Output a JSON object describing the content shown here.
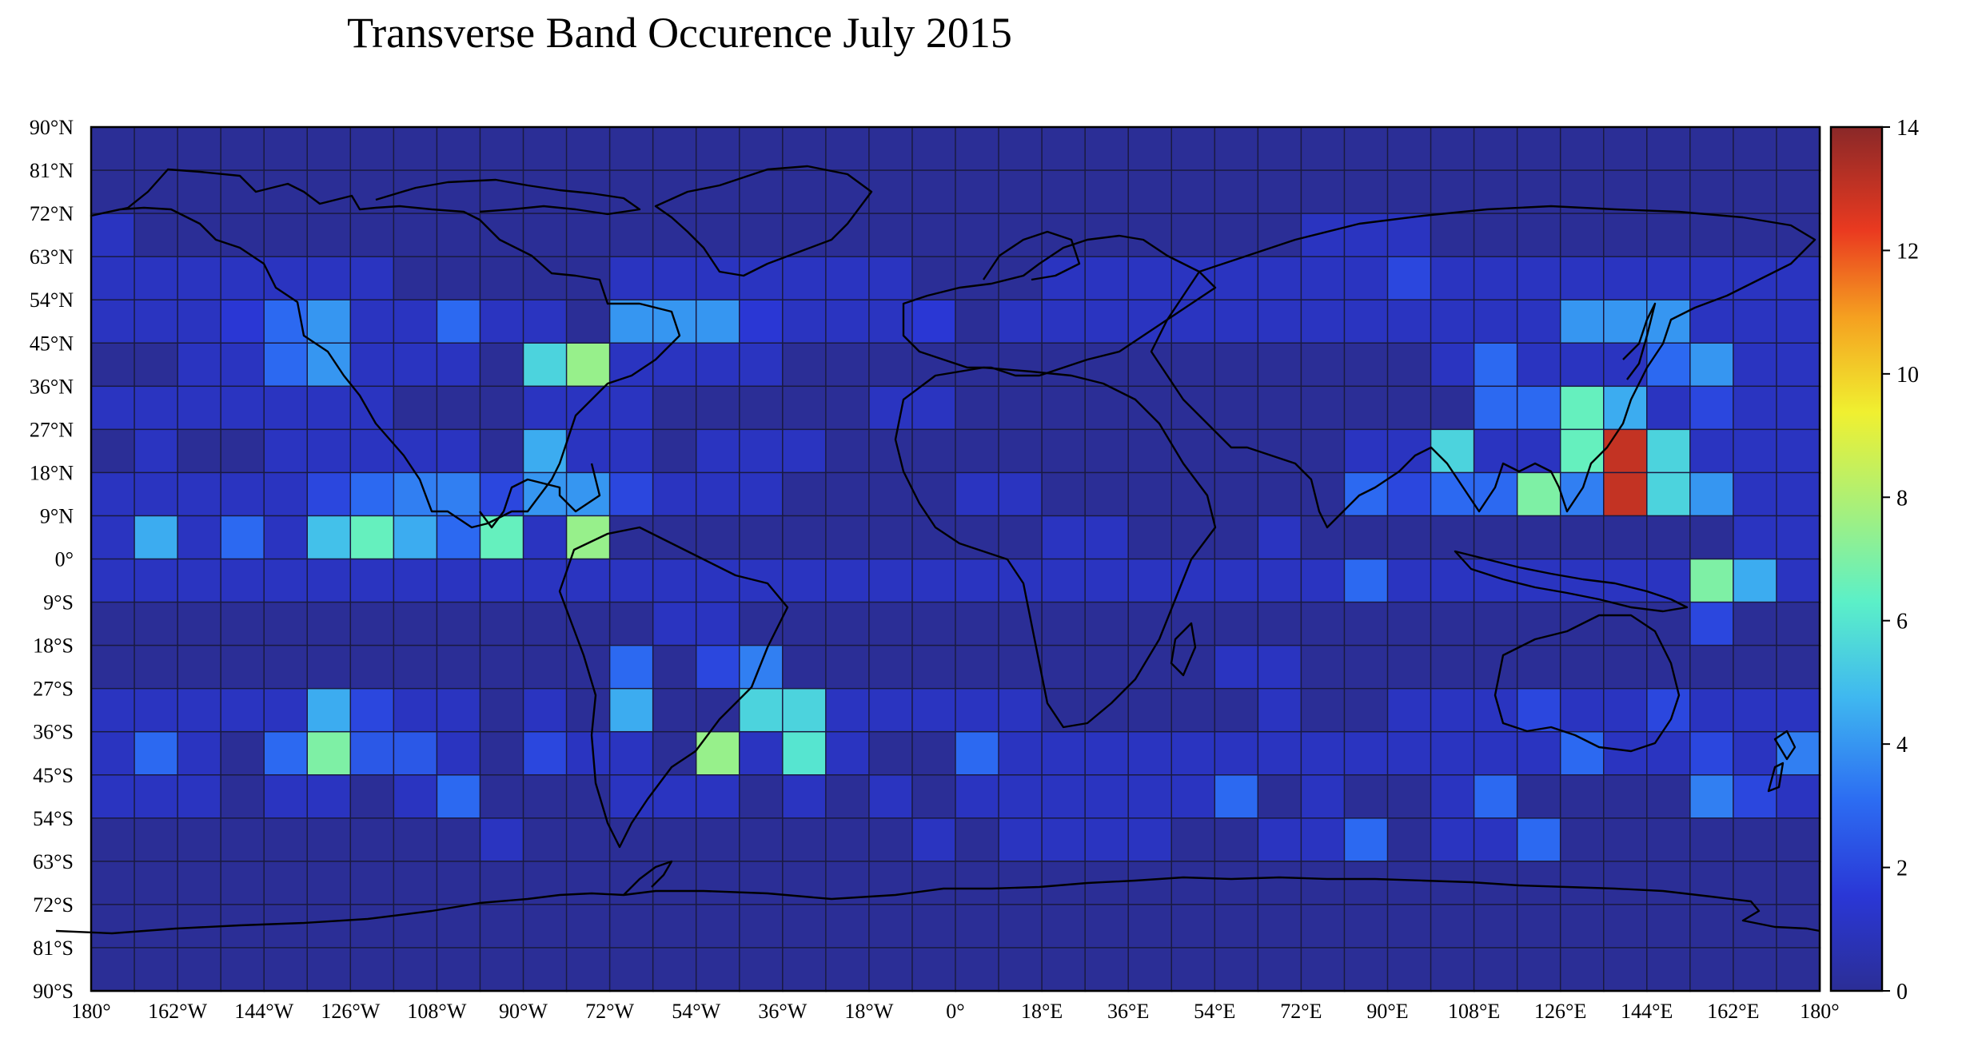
{
  "chart_data": {
    "type": "heatmap",
    "title": "Transverse Band Occurence July 2015",
    "x_tick_labels": [
      "180°",
      "162°W",
      "144°W",
      "126°W",
      "108°W",
      "90°W",
      "72°W",
      "54°W",
      "36°W",
      "18°W",
      "0°",
      "18°E",
      "36°E",
      "54°E",
      "72°E",
      "90°E",
      "108°E",
      "126°E",
      "144°E",
      "162°E",
      "180°"
    ],
    "y_tick_labels": [
      "90°N",
      "81°N",
      "72°N",
      "63°N",
      "54°N",
      "45°N",
      "36°N",
      "27°N",
      "18°N",
      "9°N",
      "0°",
      "9°S",
      "18°S",
      "27°S",
      "36°S",
      "45°S",
      "54°S",
      "63°S",
      "72°S",
      "81°S",
      "90°S"
    ],
    "lon_range": [
      -180,
      180
    ],
    "lat_range": [
      -90,
      90
    ],
    "cell_size_deg": [
      9,
      9
    ],
    "grid": true,
    "colorbar": {
      "range": [
        0,
        14
      ],
      "ticks": [
        "0",
        "2",
        "4",
        "6",
        "8",
        "10",
        "12",
        "14"
      ],
      "colormap": "jet"
    },
    "rows_note": "rows from 90N-81N (index 0) to 81S-90S (index 19); columns from 180W-171W (index 0) to 171E-180E (index 39)",
    "values": [
      [
        0,
        0,
        0,
        0,
        0,
        0,
        0,
        0,
        0,
        0,
        0,
        0,
        0,
        0,
        0,
        0,
        0,
        0,
        0,
        0,
        0,
        0,
        0,
        0,
        0,
        0,
        0,
        0,
        0,
        0,
        0,
        0,
        0,
        0,
        0,
        0,
        0,
        0,
        0,
        0
      ],
      [
        0,
        0,
        0,
        0,
        0,
        0,
        0,
        0,
        0,
        0,
        0,
        0,
        0,
        0,
        0,
        0,
        0,
        0,
        0,
        0,
        0,
        0,
        0,
        0,
        0,
        0,
        0,
        0,
        0,
        0,
        0,
        0,
        0,
        0,
        0,
        0,
        0,
        0,
        0,
        0
      ],
      [
        1,
        0,
        0,
        0,
        0,
        0,
        0,
        0,
        0,
        0,
        0,
        0,
        0,
        0,
        0,
        0,
        0,
        0,
        0,
        0,
        0,
        0,
        0,
        0,
        0,
        0,
        0,
        0,
        1,
        1,
        1,
        0,
        0,
        0,
        0,
        0,
        0,
        0,
        0,
        0
      ],
      [
        1,
        1,
        1,
        1,
        1,
        1,
        1,
        0,
        0,
        0,
        0,
        0,
        1,
        1,
        1,
        1,
        1,
        1,
        1,
        0,
        0,
        0,
        1,
        1,
        1,
        1,
        1,
        1,
        1,
        1,
        2,
        1,
        1,
        1,
        1,
        1,
        1,
        1,
        1,
        1
      ],
      [
        1,
        1,
        1,
        1.5,
        3,
        4,
        1,
        1,
        3,
        1,
        1,
        0,
        4,
        4,
        4,
        1.5,
        1,
        1,
        1,
        1.5,
        0,
        1,
        1,
        1,
        1,
        1,
        1,
        1,
        1,
        1,
        1,
        1,
        1,
        1,
        4,
        4,
        4,
        1,
        1,
        1
      ],
      [
        0,
        0,
        1,
        1,
        3,
        4,
        1,
        1,
        1,
        0,
        5.5,
        7.5,
        1,
        1,
        1,
        1,
        0,
        0,
        0,
        0,
        0,
        0,
        0,
        0,
        0,
        0,
        0,
        0,
        0,
        0,
        0,
        1,
        3,
        1,
        1,
        1,
        3,
        4,
        1,
        1
      ],
      [
        1,
        1,
        1,
        1,
        1,
        1,
        1,
        0,
        0,
        0,
        1,
        1,
        1,
        0,
        0,
        0,
        0,
        0,
        1,
        1,
        0,
        0,
        0,
        0,
        0,
        0,
        0,
        0,
        0,
        0,
        0,
        0,
        3,
        3,
        6.5,
        4.5,
        1,
        2,
        1,
        1
      ],
      [
        0,
        1,
        0,
        0,
        1,
        1,
        1,
        1,
        1,
        0,
        4.5,
        1,
        1,
        0,
        1,
        1,
        1,
        0,
        0,
        0,
        0,
        0,
        0,
        0,
        0,
        0,
        0,
        0,
        0,
        1,
        1,
        5.5,
        1,
        1,
        6.5,
        13,
        5.5,
        1,
        1,
        1
      ],
      [
        1,
        1,
        1,
        1,
        1,
        2,
        3,
        3.5,
        3.5,
        2,
        4,
        4,
        2,
        1,
        1,
        1,
        0,
        0,
        0,
        0,
        1,
        1,
        0,
        0,
        0,
        0,
        0,
        0,
        0,
        3,
        2,
        3,
        3,
        7,
        3.5,
        13,
        5.5,
        4,
        1,
        1
      ],
      [
        1,
        4.5,
        1,
        3,
        1,
        5,
        6.5,
        4.5,
        3,
        6.5,
        1,
        7.5,
        0,
        0,
        0,
        0,
        0,
        0,
        0,
        0,
        0,
        0,
        1,
        1,
        0,
        0,
        0,
        1,
        0,
        0,
        0,
        0,
        0,
        0,
        0,
        0,
        0,
        0,
        1,
        1
      ],
      [
        1,
        1,
        1,
        1,
        1,
        1,
        1,
        1,
        1,
        1,
        1,
        1,
        1,
        1,
        1,
        1,
        1,
        1,
        1,
        1,
        1,
        1,
        1,
        1,
        1,
        1,
        1,
        1,
        1,
        3,
        1,
        1,
        1,
        1,
        1,
        1,
        1,
        7,
        4.5,
        1
      ],
      [
        0,
        0,
        0,
        0,
        0,
        0,
        0,
        0,
        0,
        0,
        0,
        0,
        0,
        1,
        1,
        0,
        0,
        0,
        0,
        0,
        0,
        0,
        0,
        0,
        0,
        0,
        0,
        0,
        0,
        0,
        0,
        0,
        0,
        0,
        0,
        0,
        0,
        2,
        0,
        0
      ],
      [
        0,
        0,
        0,
        0,
        0,
        0,
        0,
        0,
        0,
        0,
        0,
        0,
        3,
        0,
        2,
        3.5,
        0,
        0,
        0,
        0,
        0,
        0,
        0,
        0,
        0,
        0,
        1,
        1,
        0,
        0,
        0,
        0,
        0,
        0,
        0,
        0,
        0,
        0,
        0,
        0
      ],
      [
        1,
        1,
        1,
        1,
        1,
        4.5,
        2,
        1,
        1,
        0,
        1,
        0,
        4.5,
        0,
        0,
        5.5,
        5.5,
        1,
        1,
        1,
        1,
        1,
        0,
        0,
        0,
        0,
        0,
        1,
        0,
        0,
        1,
        1,
        1,
        2,
        1,
        1,
        2,
        1,
        1,
        1
      ],
      [
        1,
        3,
        1,
        0,
        3,
        7,
        2.5,
        2.5,
        1,
        0,
        2,
        1,
        1,
        0,
        7.5,
        1,
        6,
        1,
        0,
        0,
        3,
        1,
        1,
        1,
        1,
        1,
        1,
        1,
        1,
        1,
        1,
        1,
        1,
        1,
        3,
        1,
        1,
        2,
        1,
        3.5
      ],
      [
        1,
        1,
        1,
        0,
        1,
        1,
        0,
        1,
        3,
        0,
        0,
        0,
        1,
        1,
        1,
        0,
        1,
        0,
        1,
        0,
        1,
        1,
        1,
        1,
        1,
        1,
        3,
        0,
        1,
        0,
        0,
        1,
        3,
        0,
        0,
        0,
        0,
        3.5,
        2,
        1
      ],
      [
        0,
        0,
        0,
        0,
        0,
        0,
        0,
        0,
        0,
        1,
        0,
        0,
        0,
        0,
        0,
        0,
        0,
        0,
        0,
        1,
        0,
        1,
        1,
        1,
        1,
        0,
        0,
        1,
        1,
        3,
        0,
        1,
        1,
        3,
        0,
        0,
        0,
        0,
        0,
        0
      ],
      [
        0,
        0,
        0,
        0,
        0,
        0,
        0,
        0,
        0,
        0,
        0,
        0,
        0,
        0,
        0,
        0,
        0,
        0,
        0,
        0,
        0,
        0,
        0,
        0,
        0,
        0,
        0,
        0,
        0,
        0,
        0,
        0,
        0,
        0,
        0,
        0,
        0,
        0,
        0,
        0
      ],
      [
        0,
        0,
        0,
        0,
        0,
        0,
        0,
        0,
        0,
        0,
        0,
        0,
        0,
        0,
        0,
        0,
        0,
        0,
        0,
        0,
        0,
        0,
        0,
        0,
        0,
        0,
        0,
        0,
        0,
        0,
        0,
        0,
        0,
        0,
        0,
        0,
        0,
        0,
        0,
        0
      ],
      [
        0,
        0,
        0,
        0,
        0,
        0,
        0,
        0,
        0,
        0,
        0,
        0,
        0,
        0,
        0,
        0,
        0,
        0,
        0,
        0,
        0,
        0,
        0,
        0,
        0,
        0,
        0,
        0,
        0,
        0,
        0,
        0,
        0,
        0,
        0,
        0,
        0,
        0,
        0,
        0
      ]
    ]
  }
}
